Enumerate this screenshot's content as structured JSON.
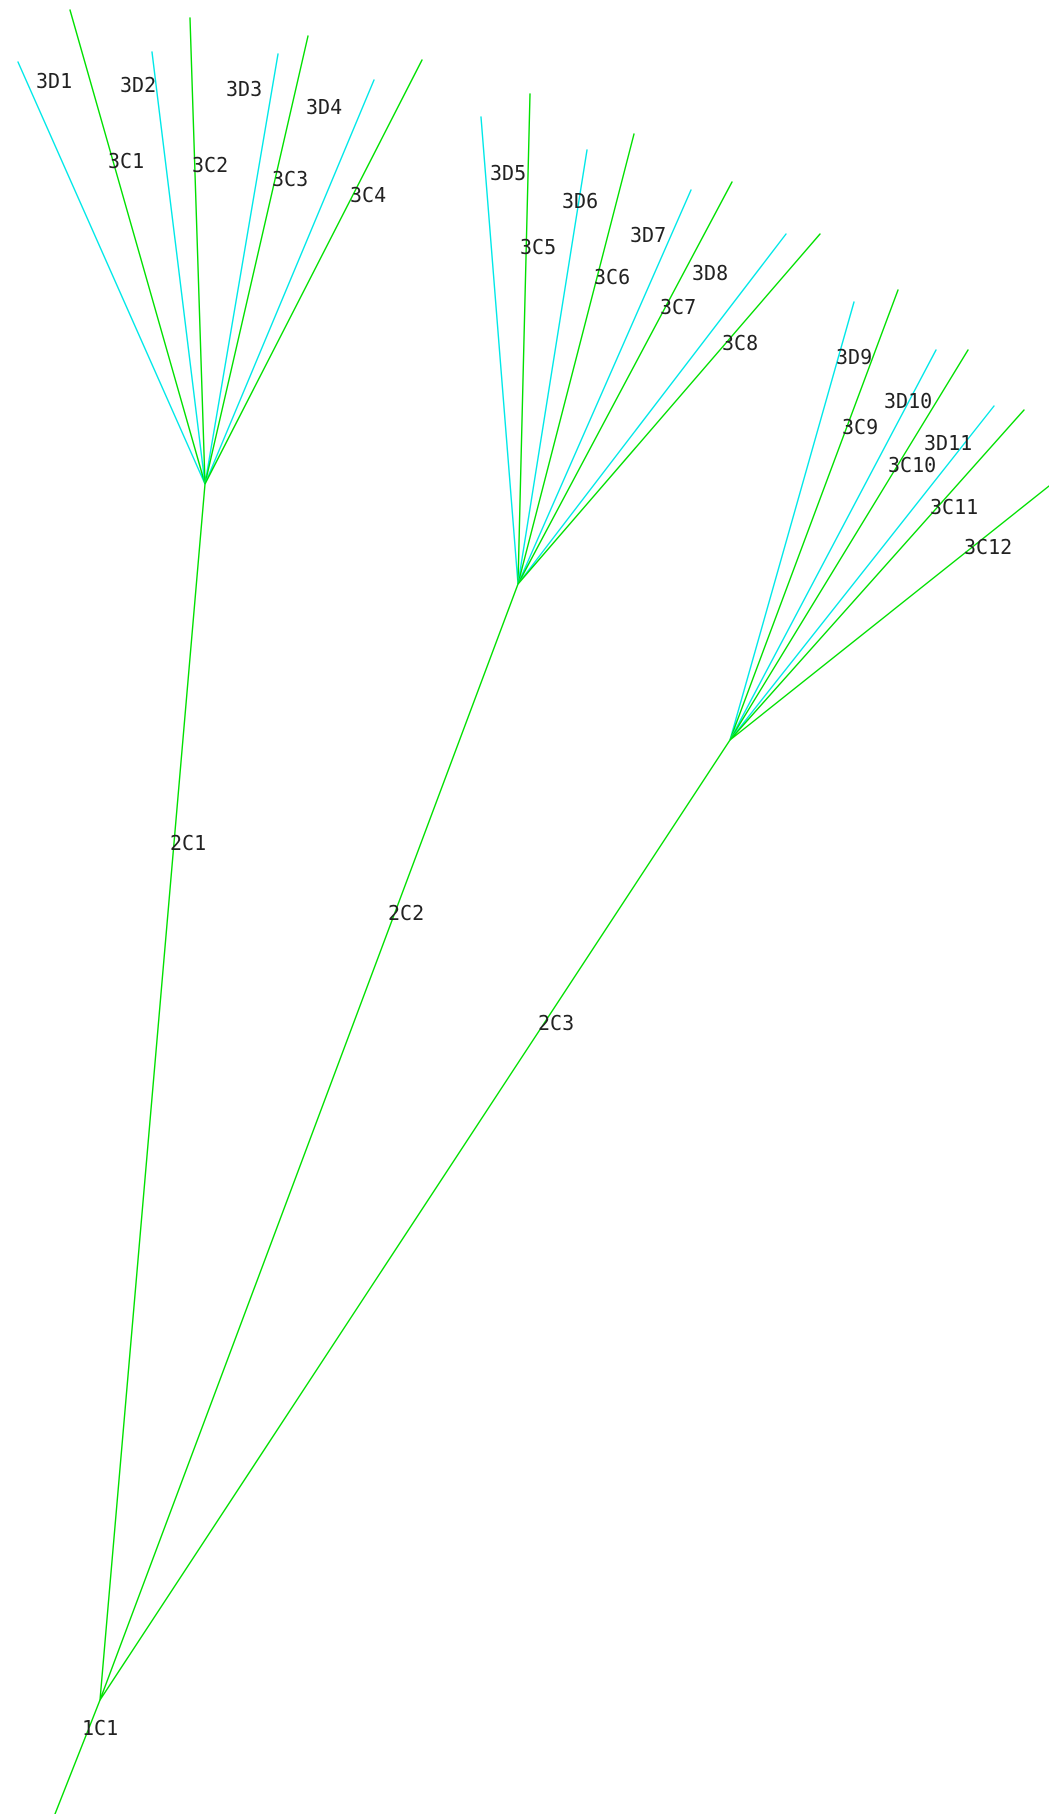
{
  "colors": {
    "stem": "#00e000",
    "branch": "#00e8e8",
    "text": "#222222",
    "background": "#ffffff"
  },
  "labels": {
    "1C1": "1C1",
    "2C1": "2C1",
    "2C2": "2C2",
    "2C3": "2C3",
    "3C1": "3C1",
    "3C2": "3C2",
    "3C3": "3C3",
    "3C4": "3C4",
    "3C5": "3C5",
    "3C6": "3C6",
    "3C7": "3C7",
    "3C8": "3C8",
    "3C9": "3C9",
    "3C10": "3C10",
    "3C11": "3C11",
    "3C12": "3C12",
    "3D1": "3D1",
    "3D2": "3D2",
    "3D3": "3D3",
    "3D4": "3D4",
    "3D5": "3D5",
    "3D6": "3D6",
    "3D7": "3D7",
    "3D8": "3D8",
    "3D9": "3D9",
    "3D10": "3D10",
    "3D11": "3D11"
  }
}
